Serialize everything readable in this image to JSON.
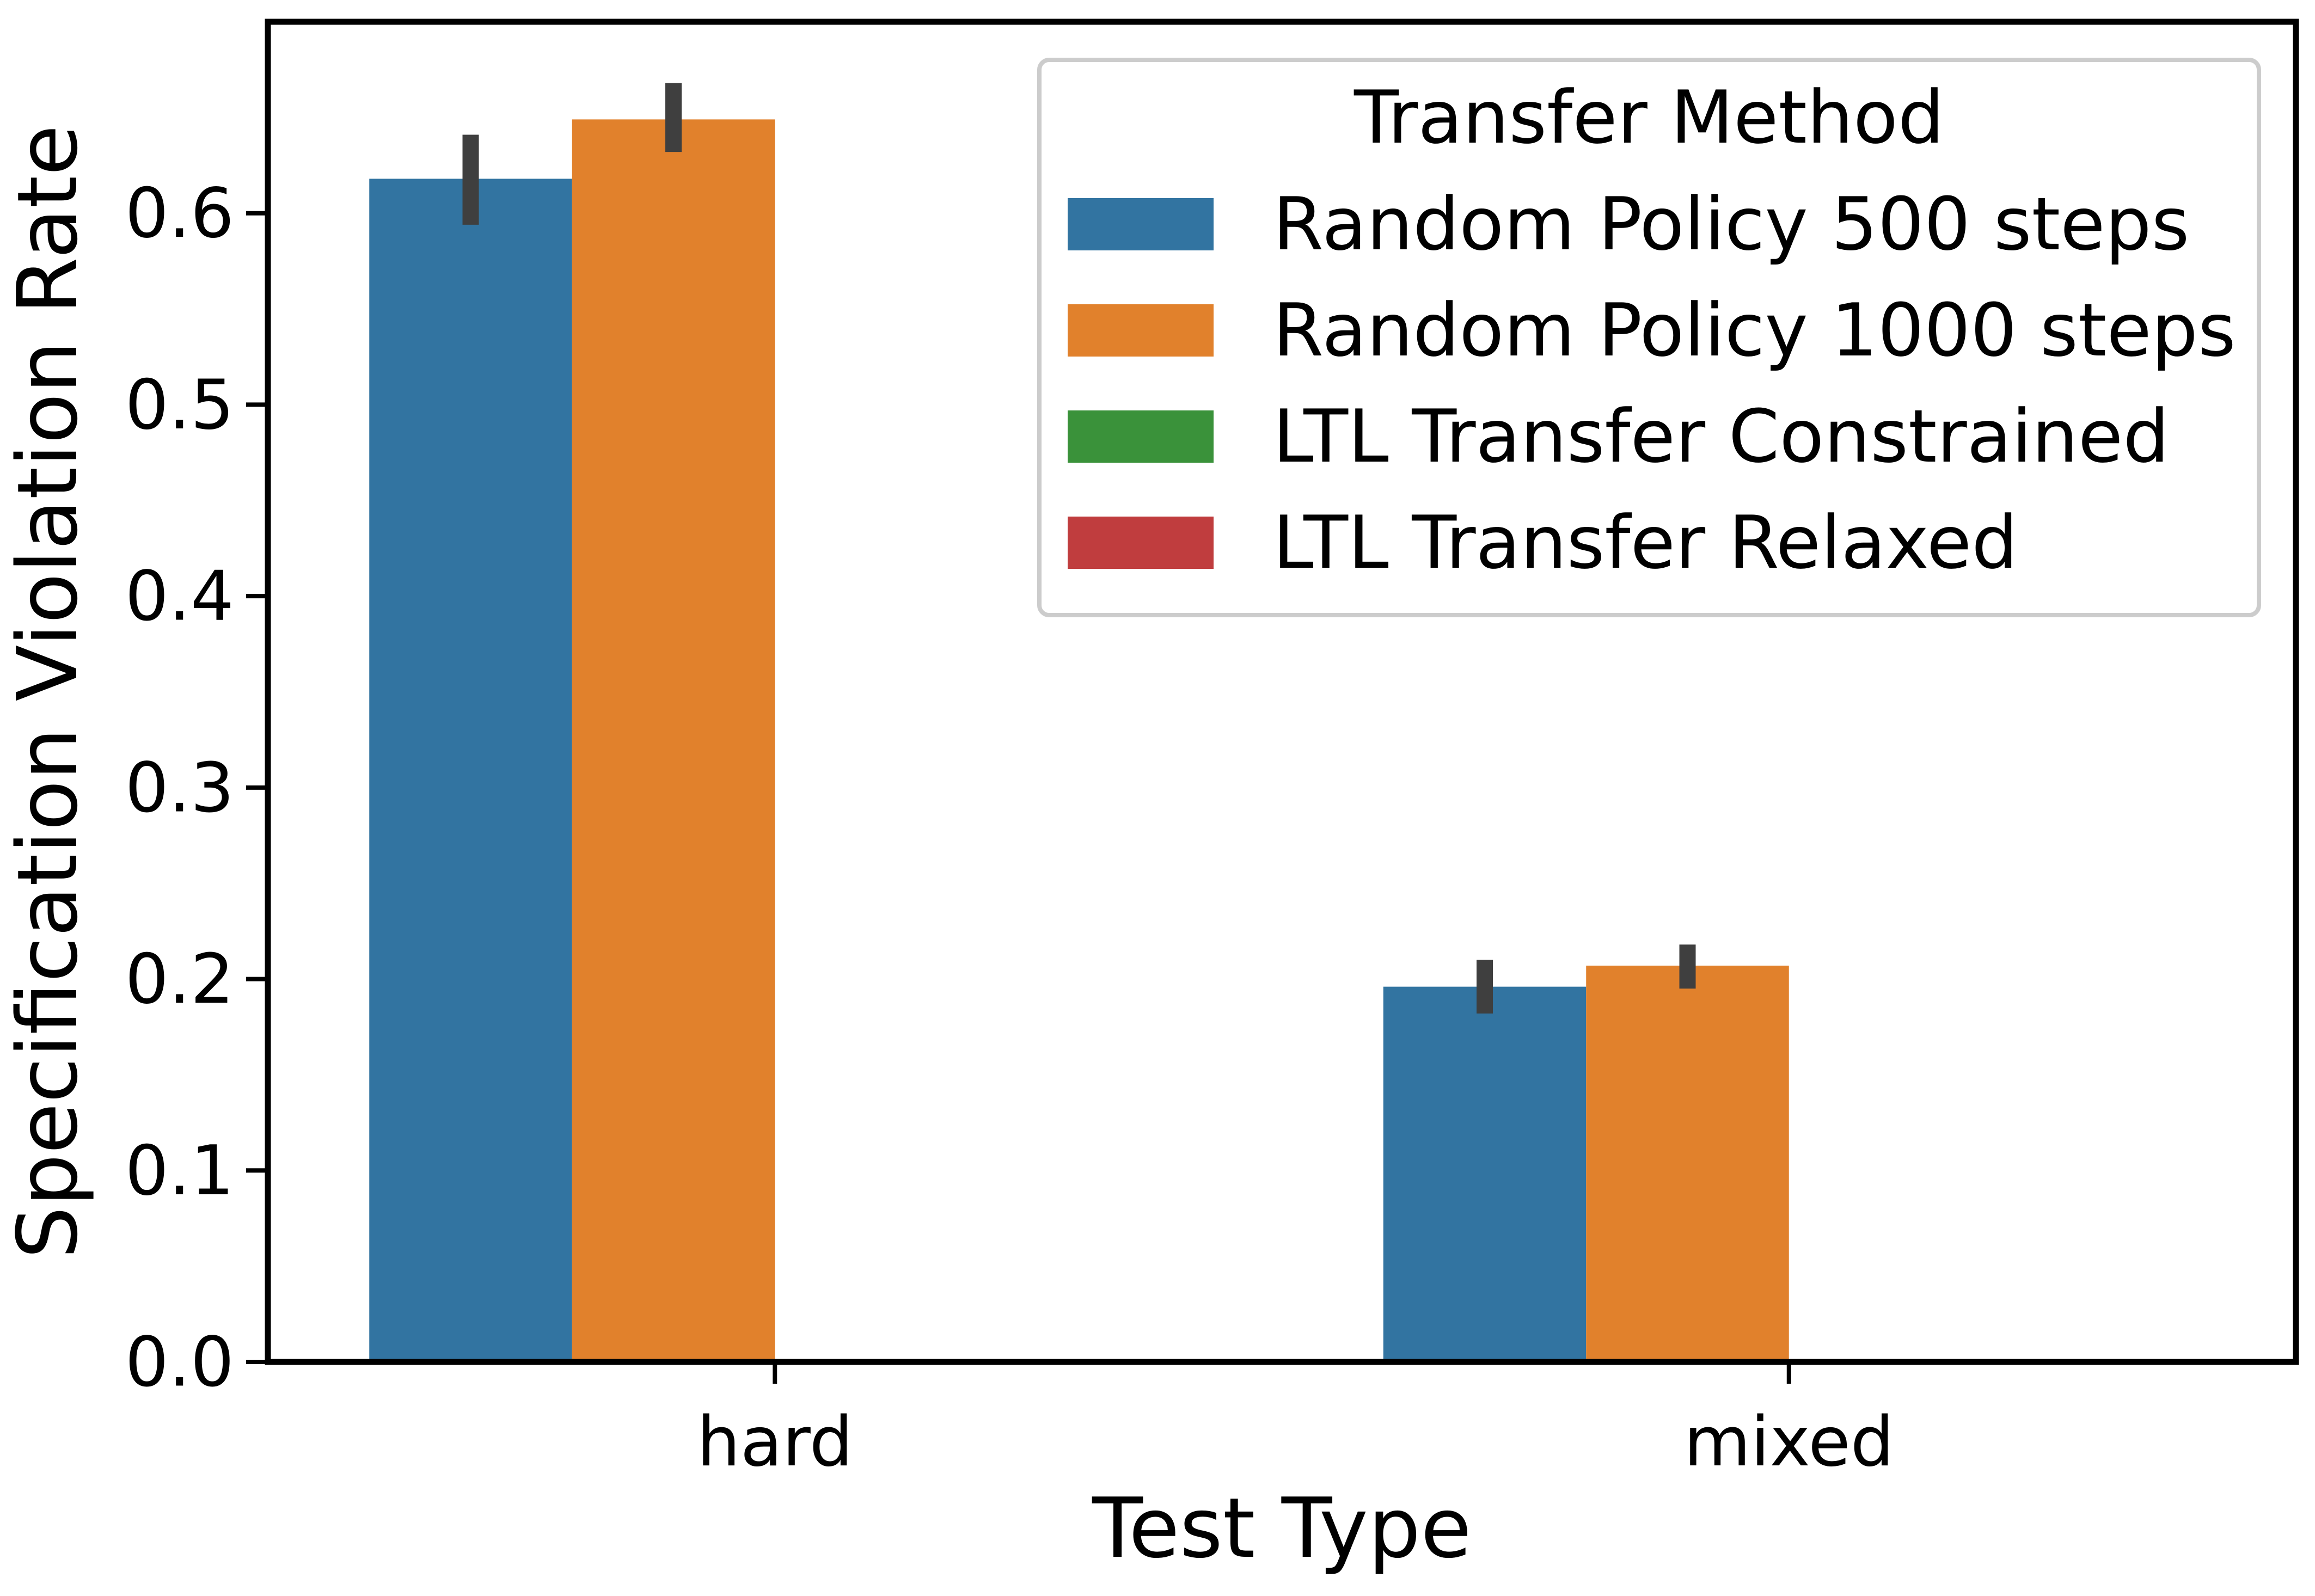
{
  "chart_data": {
    "type": "bar",
    "xlabel": "Test Type",
    "ylabel": "Specification Violation Rate",
    "categories": [
      "hard",
      "mixed"
    ],
    "ylim": [
      0,
      0.7
    ],
    "yticks": [
      0.0,
      0.1,
      0.2,
      0.3,
      0.4,
      0.5,
      0.6
    ],
    "ytick_labels": [
      "0.0",
      "0.1",
      "0.2",
      "0.3",
      "0.4",
      "0.5",
      "0.6"
    ],
    "grid": false,
    "legend": {
      "title": "Transfer Method",
      "placement": "top-right"
    },
    "series": [
      {
        "name": "Random Policy 500 steps",
        "color": "#3274a1",
        "values": [
          0.618,
          0.196
        ],
        "err_low": [
          0.594,
          0.182
        ],
        "err_high": [
          0.641,
          0.21
        ]
      },
      {
        "name": "Random Policy 1000 steps",
        "color": "#e1812c",
        "values": [
          0.649,
          0.207
        ],
        "err_low": [
          0.632,
          0.195
        ],
        "err_high": [
          0.668,
          0.218
        ]
      },
      {
        "name": "LTL Transfer Constrained",
        "color": "#3a923a",
        "values": [
          0.0,
          0.0
        ],
        "err_low": [
          0.0,
          0.0
        ],
        "err_high": [
          0.0,
          0.0
        ]
      },
      {
        "name": "LTL Transfer Relaxed",
        "color": "#c03d3e",
        "values": [
          0.0,
          0.0
        ],
        "err_low": [
          0.0,
          0.0
        ],
        "err_high": [
          0.0,
          0.0
        ]
      }
    ]
  }
}
